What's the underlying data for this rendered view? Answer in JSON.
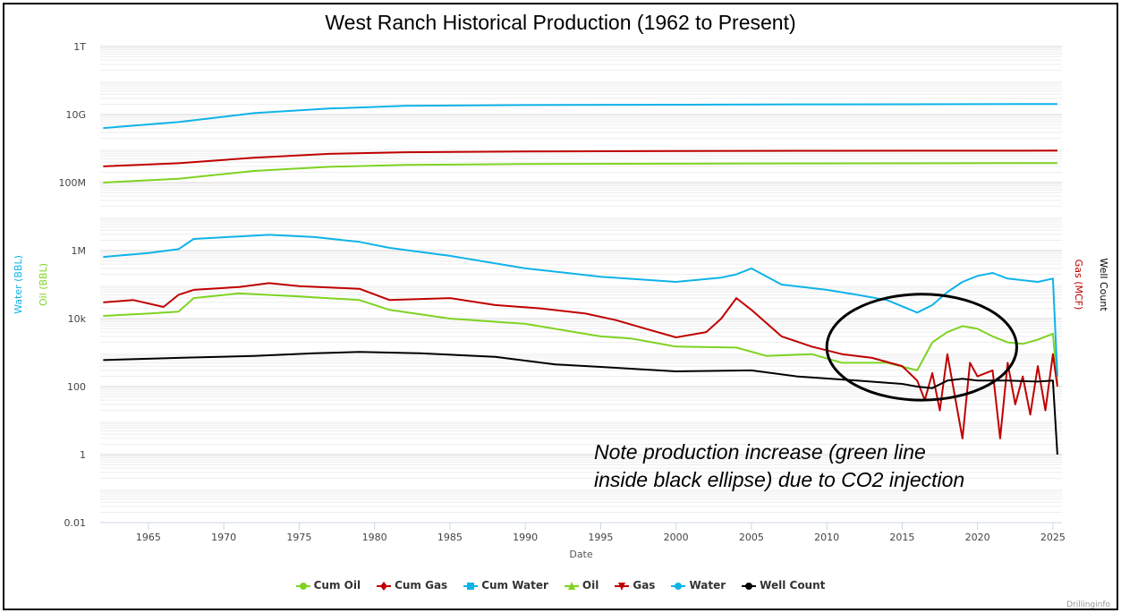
{
  "chart_data": {
    "type": "line",
    "title": "West Ranch Historical Production (1962 to Present)",
    "xlabel": "Date",
    "y_axis_left_labels": [
      "Water (BBL)",
      "Oil (BBL)"
    ],
    "y_axis_right_labels": [
      "Gas (MCF)",
      "Well Count"
    ],
    "y_scale": "log",
    "ylim": [
      0.01,
      1000000000000
    ],
    "y_ticks": [
      {
        "value": 1000000000000,
        "label": "1T"
      },
      {
        "value": 10000000000,
        "label": "10G"
      },
      {
        "value": 100000000,
        "label": "100M"
      },
      {
        "value": 1000000,
        "label": "1M"
      },
      {
        "value": 10000,
        "label": "10k"
      },
      {
        "value": 100,
        "label": "100"
      },
      {
        "value": 1,
        "label": "1"
      },
      {
        "value": 0.01,
        "label": "0.01"
      }
    ],
    "xlim": [
      1961.8,
      2025.6
    ],
    "x_ticks": [
      1965,
      1970,
      1975,
      1980,
      1985,
      1990,
      1995,
      2000,
      2005,
      2010,
      2015,
      2020,
      2025
    ],
    "annotation": {
      "text_line1": "Note production increase (green line",
      "text_line2": "inside black ellipse) due to CO2 injection",
      "ellipse_center_x": 2016.3,
      "ellipse_center_value": 1500,
      "ellipse_half_width_years": 6.3,
      "ellipse_upper_value": 52000,
      "ellipse_lower_value": 40
    },
    "series": [
      {
        "name": "Cum Oil",
        "color": "#7ed321",
        "marker": "circle",
        "points": [
          [
            1962,
            100000000
          ],
          [
            1967,
            130000000
          ],
          [
            1972,
            220000000
          ],
          [
            1977,
            290000000
          ],
          [
            1982,
            330000000
          ],
          [
            1990,
            350000000
          ],
          [
            2000,
            360000000
          ],
          [
            2010,
            365000000
          ],
          [
            2025.3,
            375000000
          ]
        ]
      },
      {
        "name": "Cum Gas",
        "color": "#c00000",
        "marker": "diamond",
        "points": [
          [
            1962,
            300000000
          ],
          [
            1967,
            370000000
          ],
          [
            1972,
            540000000
          ],
          [
            1977,
            700000000
          ],
          [
            1982,
            780000000
          ],
          [
            1990,
            820000000
          ],
          [
            2000,
            850000000
          ],
          [
            2010,
            860000000
          ],
          [
            2025.3,
            870000000
          ]
        ]
      },
      {
        "name": "Cum Water",
        "color": "#0fb3e8",
        "marker": "square",
        "points": [
          [
            1962,
            4000000000
          ],
          [
            1967,
            6000000000
          ],
          [
            1972,
            11000000000
          ],
          [
            1977,
            15000000000
          ],
          [
            1982,
            18000000000
          ],
          [
            1990,
            19000000000
          ],
          [
            2000,
            19500000000
          ],
          [
            2010,
            20000000000
          ],
          [
            2025.3,
            20500000000
          ]
        ]
      },
      {
        "name": "Oil",
        "color": "#7ed321",
        "marker": "triangle",
        "points": [
          [
            1962,
            12000
          ],
          [
            1965,
            14000
          ],
          [
            1967,
            16000
          ],
          [
            1968,
            40000
          ],
          [
            1971,
            55000
          ],
          [
            1975,
            45000
          ],
          [
            1979,
            35000
          ],
          [
            1981,
            18000
          ],
          [
            1985,
            10000
          ],
          [
            1990,
            7000
          ],
          [
            1995,
            3000
          ],
          [
            1997,
            2600
          ],
          [
            2000,
            1500
          ],
          [
            2004,
            1400
          ],
          [
            2006,
            800
          ],
          [
            2009,
            900
          ],
          [
            2011,
            500
          ],
          [
            2014,
            500
          ],
          [
            2016,
            300
          ],
          [
            2017,
            2000
          ],
          [
            2018,
            4000
          ],
          [
            2019,
            6000
          ],
          [
            2020,
            5000
          ],
          [
            2021,
            3000
          ],
          [
            2022,
            2000
          ],
          [
            2023,
            1800
          ],
          [
            2024,
            2400
          ],
          [
            2025,
            3600
          ],
          [
            2025.3,
            120
          ]
        ]
      },
      {
        "name": "Gas",
        "color": "#c00000",
        "marker": "triangle-down",
        "points": [
          [
            1962,
            30000
          ],
          [
            1964,
            35000
          ],
          [
            1966,
            22000
          ],
          [
            1967,
            50000
          ],
          [
            1968,
            70000
          ],
          [
            1971,
            85000
          ],
          [
            1973,
            110000
          ],
          [
            1975,
            90000
          ],
          [
            1979,
            75000
          ],
          [
            1981,
            35000
          ],
          [
            1985,
            40000
          ],
          [
            1988,
            25000
          ],
          [
            1991,
            20000
          ],
          [
            1994,
            14000
          ],
          [
            1996,
            9000
          ],
          [
            1998,
            5000
          ],
          [
            2000,
            2800
          ],
          [
            2002,
            4000
          ],
          [
            2003,
            10000
          ],
          [
            2004,
            40000
          ],
          [
            2005,
            18000
          ],
          [
            2007,
            3000
          ],
          [
            2009,
            1500
          ],
          [
            2011,
            900
          ],
          [
            2013,
            700
          ],
          [
            2015,
            400
          ],
          [
            2016,
            150
          ],
          [
            2016.5,
            40
          ],
          [
            2017,
            250
          ],
          [
            2017.5,
            20
          ],
          [
            2018,
            900
          ],
          [
            2019,
            3
          ],
          [
            2019.5,
            500
          ],
          [
            2020,
            200
          ],
          [
            2021,
            300
          ],
          [
            2021.5,
            3
          ],
          [
            2022,
            500
          ],
          [
            2022.5,
            30
          ],
          [
            2023,
            200
          ],
          [
            2023.5,
            15
          ],
          [
            2024,
            400
          ],
          [
            2024.5,
            20
          ],
          [
            2025,
            900
          ],
          [
            2025.3,
            100
          ]
        ]
      },
      {
        "name": "Water",
        "color": "#0fb3e8",
        "marker": "circle",
        "points": [
          [
            1962,
            650000
          ],
          [
            1965,
            850000
          ],
          [
            1967,
            1100000
          ],
          [
            1968,
            2200000
          ],
          [
            1971,
            2600000
          ],
          [
            1973,
            2900000
          ],
          [
            1976,
            2500000
          ],
          [
            1979,
            1800000
          ],
          [
            1981,
            1200000
          ],
          [
            1985,
            700000
          ],
          [
            1990,
            300000
          ],
          [
            1995,
            170000
          ],
          [
            2000,
            120000
          ],
          [
            2003,
            160000
          ],
          [
            2004,
            200000
          ],
          [
            2005,
            300000
          ],
          [
            2007,
            100000
          ],
          [
            2010,
            70000
          ],
          [
            2012,
            50000
          ],
          [
            2014,
            35000
          ],
          [
            2016,
            15000
          ],
          [
            2017,
            25000
          ],
          [
            2018,
            60000
          ],
          [
            2019,
            120000
          ],
          [
            2020,
            180000
          ],
          [
            2021,
            220000
          ],
          [
            2022,
            150000
          ],
          [
            2024,
            120000
          ],
          [
            2025,
            150000
          ],
          [
            2025.3,
            200
          ]
        ]
      },
      {
        "name": "Well Count",
        "color": "#000000",
        "marker": "circle",
        "points": [
          [
            1962,
            600
          ],
          [
            1967,
            700
          ],
          [
            1972,
            800
          ],
          [
            1976,
            950
          ],
          [
            1979,
            1050
          ],
          [
            1983,
            950
          ],
          [
            1988,
            750
          ],
          [
            1992,
            450
          ],
          [
            1995,
            380
          ],
          [
            2000,
            280
          ],
          [
            2005,
            300
          ],
          [
            2008,
            200
          ],
          [
            2012,
            150
          ],
          [
            2015,
            120
          ],
          [
            2016,
            100
          ],
          [
            2017,
            90
          ],
          [
            2018,
            150
          ],
          [
            2019,
            170
          ],
          [
            2020,
            150
          ],
          [
            2022,
            150
          ],
          [
            2024,
            140
          ],
          [
            2025,
            150
          ],
          [
            2025.3,
            1
          ]
        ]
      }
    ]
  },
  "credit": "Drillinginfo"
}
